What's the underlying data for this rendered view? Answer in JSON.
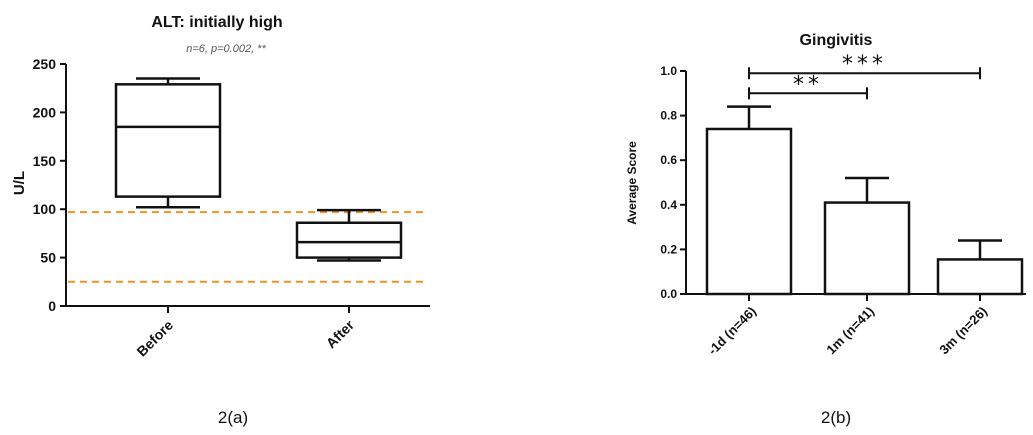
{
  "chart_data": [
    {
      "type": "box",
      "title": "ALT: initially high",
      "subtitle": "n=6, p=0.002, **",
      "ylabel": "U/L",
      "ylim": [
        0,
        250
      ],
      "yticks": [
        0,
        50,
        100,
        150,
        200,
        250
      ],
      "categories": [
        "Before",
        "After"
      ],
      "boxes": [
        {
          "min": 102,
          "q1": 113,
          "median": 185,
          "q3": 229,
          "max": 235
        },
        {
          "min": 47,
          "q1": 50,
          "median": 66,
          "q3": 86,
          "max": 99
        }
      ],
      "reference_lines": [
        97,
        25
      ],
      "reference_color": "#f39223",
      "caption": "2(a)"
    },
    {
      "type": "bar",
      "title": "Gingivitis",
      "ylabel": "Average Score",
      "ylim": [
        0,
        1.0
      ],
      "yticks": [
        "0.0",
        "0.2",
        "0.4",
        "0.6",
        "0.8",
        "1.0"
      ],
      "categories": [
        "-1d (n=46)",
        "1m (n=41)",
        "3m (n=26)"
      ],
      "values": [
        0.74,
        0.41,
        0.155
      ],
      "errors": [
        0.1,
        0.11,
        0.085
      ],
      "significance": [
        {
          "from": 0,
          "to": 1,
          "y": 0.9,
          "label": "**"
        },
        {
          "from": 0,
          "to": 2,
          "y": 0.99,
          "label": "***"
        }
      ],
      "caption": "2(b)"
    }
  ]
}
